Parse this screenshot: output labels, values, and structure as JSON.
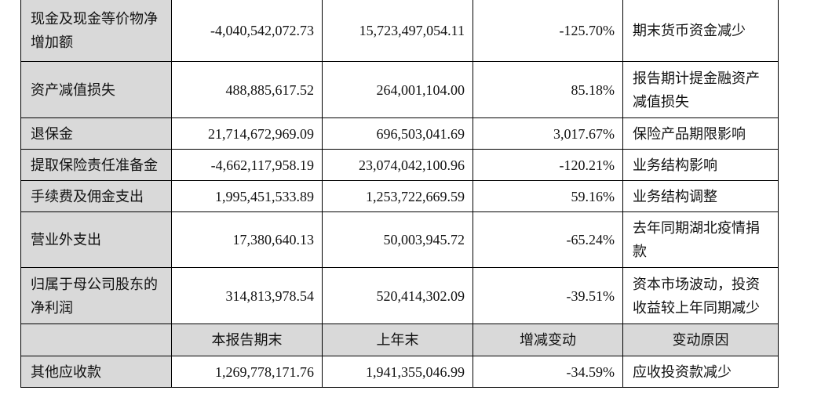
{
  "table": {
    "rows_before_header": [
      [
        "现金及现金等价物净增加额",
        "-4,040,542,072.73",
        "15,723,497,054.11",
        "-125.70%",
        "期末货币资金减少"
      ],
      [
        "资产减值损失",
        "488,885,617.52",
        "264,001,104.00",
        "85.18%",
        "报告期计提金融资产减值损失"
      ],
      [
        "退保金",
        "21,714,672,969.09",
        "696,503,041.69",
        "3,017.67%",
        "保险产品期限影响"
      ],
      [
        "提取保险责任准备金",
        "-4,662,117,958.19",
        "23,074,042,100.96",
        "-120.21%",
        "业务结构影响"
      ],
      [
        "手续费及佣金支出",
        "1,995,451,533.89",
        "1,253,722,669.59",
        "59.16%",
        "业务结构调整"
      ],
      [
        "营业外支出",
        "17,380,640.13",
        "50,003,945.72",
        "-65.24%",
        "去年同期湖北疫情捐款"
      ],
      [
        "归属于母公司股东的净利润",
        "314,813,978.54",
        "520,414,302.09",
        "-39.51%",
        "资本市场波动，投资收益较上年同期减少"
      ]
    ],
    "header": [
      "本报告期末",
      "上年末",
      "增减变动",
      "变动原因"
    ],
    "rows_after_header": [
      [
        "其他应收款",
        "1,269,778,171.76",
        "1,941,355,046.99",
        "-34.59%",
        "应收投资款减少"
      ]
    ]
  }
}
